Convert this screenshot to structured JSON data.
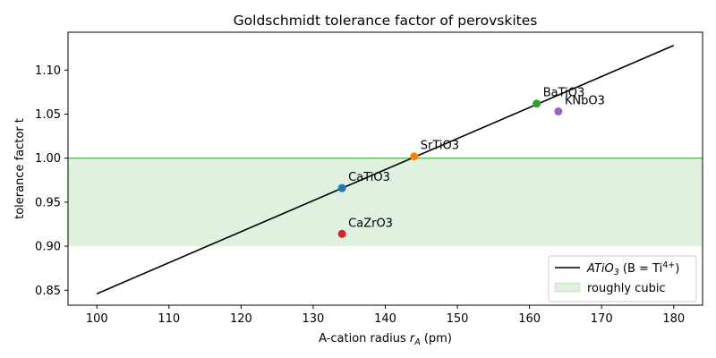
{
  "chart_data": {
    "type": "line",
    "title": "Goldschmidt tolerance factor of perovskites",
    "xlabel_prefix": "A-cation radius ",
    "xlabel_var": "r",
    "xlabel_sub": "A",
    "xlabel_suffix": " (pm)",
    "ylabel": "tolerance factor t",
    "xlim": [
      96,
      184
    ],
    "ylim": [
      0.833,
      1.143
    ],
    "xticks": [
      100,
      110,
      120,
      130,
      140,
      150,
      160,
      170,
      180
    ],
    "yticks": [
      0.85,
      0.9,
      0.95,
      1.0,
      1.05,
      1.1
    ],
    "band": {
      "y0": 0.9,
      "y1": 1.0,
      "color": "#2ca02c"
    },
    "line": {
      "color": "#000000",
      "x": [
        100,
        180
      ],
      "y": [
        0.846,
        1.128
      ]
    },
    "points": [
      {
        "label": "CaTiO3",
        "x": 134,
        "y": 0.966,
        "color": "#1f77b4"
      },
      {
        "label": "SrTiO3",
        "x": 144,
        "y": 1.002,
        "color": "#ff7f0e"
      },
      {
        "label": "BaTiO3",
        "x": 161,
        "y": 1.062,
        "color": "#2ca02c"
      },
      {
        "label": "CaZrO3",
        "x": 134,
        "y": 0.914,
        "color": "#d62728"
      },
      {
        "label": "KNbO3",
        "x": 164,
        "y": 1.053,
        "color": "#9467bd"
      }
    ],
    "legend": {
      "location": "bottom-right",
      "line_entry": {
        "var": "ATiO",
        "sub": "3",
        "mid": " (B = Ti",
        "sup": "4+",
        "end": ")"
      },
      "band_entry": "roughly cubic"
    }
  }
}
